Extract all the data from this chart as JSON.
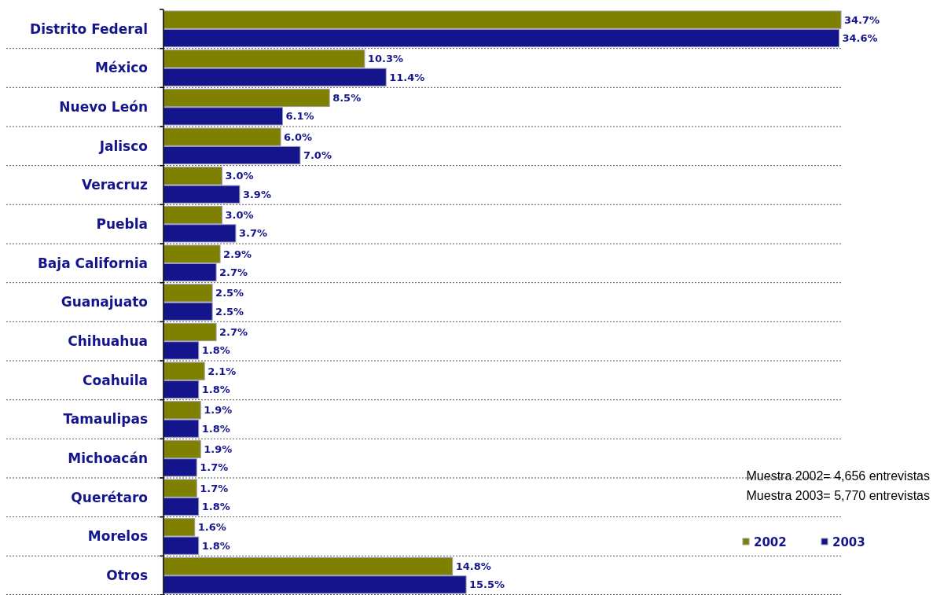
{
  "chart_data": {
    "type": "bar",
    "orientation": "horizontal",
    "categories": [
      "Distrito Federal",
      "México",
      "Nuevo León",
      "Jalisco",
      "Veracruz",
      "Puebla",
      "Baja California",
      "Guanajuato",
      "Chihuahua",
      "Coahuila",
      "Tamaulipas",
      "Michoacán",
      "Querétaro",
      "Morelos",
      "Otros"
    ],
    "series": [
      {
        "name": "2002",
        "color": "#808000",
        "values": [
          34.7,
          10.3,
          8.5,
          6.0,
          3.0,
          3.0,
          2.9,
          2.5,
          2.7,
          2.1,
          1.9,
          1.9,
          1.7,
          1.6,
          14.8
        ],
        "value_labels": [
          "34.7%",
          "10.3%",
          "8.5%",
          "6.0%",
          "3.0%",
          "3.0%",
          "2.9%",
          "2.5%",
          "2.7%",
          "2.1%",
          "1.9%",
          "1.9%",
          "1.7%",
          "1.6%",
          "14.8%"
        ]
      },
      {
        "name": "2003",
        "color": "#14148c",
        "values": [
          34.6,
          11.4,
          6.1,
          7.0,
          3.9,
          3.7,
          2.7,
          2.5,
          1.8,
          1.8,
          1.8,
          1.7,
          1.8,
          1.8,
          15.5
        ],
        "value_labels": [
          "34.6%",
          "11.4%",
          "6.1%",
          "7.0%",
          "3.9%",
          "3.7%",
          "2.7%",
          "2.5%",
          "1.8%",
          "1.8%",
          "1.8%",
          "1.7%",
          "1.8%",
          "1.8%",
          "15.5%"
        ]
      }
    ],
    "annotations": [
      "Muestra 2002= 4,656 entrevistas",
      "Muestra 2003= 5,770 entrevistas"
    ],
    "grid": "y",
    "legend": "bottom right",
    "tick_labels": "y"
  }
}
